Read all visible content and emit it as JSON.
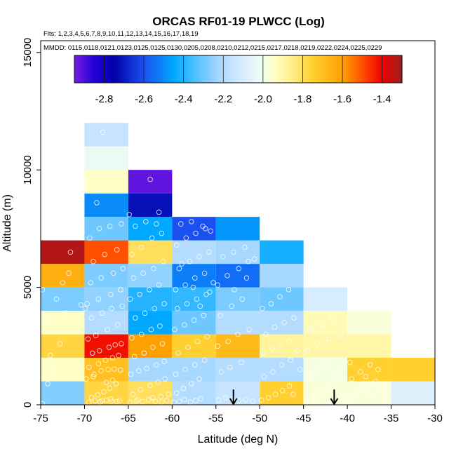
{
  "chart_data": {
    "type": "heatmap",
    "title": "ORCAS RF01-19 PLWCC (Log)",
    "flights_label": "Flts: 1,2,3,4,5,6,7,8,9,10,11,12,13,14,15,16,17,18,19",
    "dates_label": "MMDD: 0115,0118,0121,0123,0125,0125,0130,0205,0208,0210,0212,0215,0217,0218,0219,0222,0224,0225,0229",
    "xlabel": "Latitude (deg N)",
    "ylabel": "Altitude (m)",
    "xlim": [
      -75,
      -30
    ],
    "ylim": [
      0,
      15500
    ],
    "x_ticks": [
      -75,
      -70,
      -65,
      -60,
      -55,
      -50,
      -45,
      -40,
      -35,
      -30
    ],
    "x_tick_labels": [
      "-75",
      "-70",
      "-65",
      "-60",
      "-55",
      "-50",
      "-45",
      "-40",
      "-35",
      "-30"
    ],
    "y_ticks": [
      0,
      5000,
      10000,
      15000
    ],
    "y_tick_labels": [
      "0",
      "5000",
      "10000",
      "15000"
    ],
    "bin_width_deg": 5,
    "bin_height_m": 1000,
    "colorbar": {
      "vmin": -2.95,
      "vmax": -1.3,
      "ticks": [
        -2.8,
        -2.6,
        -2.4,
        -2.2,
        -2.0,
        -1.8,
        -1.6,
        -1.4
      ],
      "tick_labels": [
        "-2.8",
        "-2.6",
        "-2.4",
        "-2.2",
        "-2.0",
        "-1.8",
        "-1.6",
        "-1.4"
      ],
      "stops": [
        {
          "v": -2.95,
          "color": "#7a1ee0"
        },
        {
          "v": -2.85,
          "color": "#2400d8"
        },
        {
          "v": -2.75,
          "color": "#0000a8"
        },
        {
          "v": -2.6,
          "color": "#1a50f0"
        },
        {
          "v": -2.45,
          "color": "#00a8ff"
        },
        {
          "v": -2.3,
          "color": "#6ec8ff"
        },
        {
          "v": -2.2,
          "color": "#b4dcff"
        },
        {
          "v": -2.1,
          "color": "#d8ecff"
        },
        {
          "v": -2.0,
          "color": "#f0fff0"
        },
        {
          "v": -1.95,
          "color": "#ffffc8"
        },
        {
          "v": -1.85,
          "color": "#ffee88"
        },
        {
          "v": -1.75,
          "color": "#ffd030"
        },
        {
          "v": -1.6,
          "color": "#ffa000"
        },
        {
          "v": -1.5,
          "color": "#ff5000"
        },
        {
          "v": -1.4,
          "color": "#ee0000"
        },
        {
          "v": -1.3,
          "color": "#9a2020"
        }
      ]
    },
    "cells": [
      {
        "lat": -75,
        "alt": 0,
        "value": -2.27
      },
      {
        "lat": -75,
        "alt": 1000,
        "value": -1.95
      },
      {
        "lat": -75,
        "alt": 2000,
        "value": -1.77
      },
      {
        "lat": -75,
        "alt": 3000,
        "value": -1.95
      },
      {
        "lat": -75,
        "alt": 4000,
        "value": -2.28
      },
      {
        "lat": -75,
        "alt": 5000,
        "value": -1.65
      },
      {
        "lat": -75,
        "alt": 6000,
        "value": -1.33
      },
      {
        "lat": -70,
        "alt": 0,
        "value": -1.77
      },
      {
        "lat": -70,
        "alt": 1000,
        "value": -1.7
      },
      {
        "lat": -70,
        "alt": 2000,
        "value": -1.42
      },
      {
        "lat": -70,
        "alt": 3000,
        "value": -2.2
      },
      {
        "lat": -70,
        "alt": 4000,
        "value": -2.25
      },
      {
        "lat": -70,
        "alt": 5000,
        "value": -2.28
      },
      {
        "lat": -70,
        "alt": 6000,
        "value": -1.5
      },
      {
        "lat": -70,
        "alt": 7000,
        "value": -2.3
      },
      {
        "lat": -70,
        "alt": 8000,
        "value": -2.5
      },
      {
        "lat": -70,
        "alt": 9000,
        "value": -1.95
      },
      {
        "lat": -70,
        "alt": 10000,
        "value": -2.02
      },
      {
        "lat": -70,
        "alt": 11000,
        "value": -2.15
      },
      {
        "lat": -65,
        "alt": 0,
        "value": -1.8
      },
      {
        "lat": -65,
        "alt": 1000,
        "value": -2.22
      },
      {
        "lat": -65,
        "alt": 2000,
        "value": -1.6
      },
      {
        "lat": -65,
        "alt": 3000,
        "value": -2.45
      },
      {
        "lat": -65,
        "alt": 4000,
        "value": -2.4
      },
      {
        "lat": -65,
        "alt": 5000,
        "value": -2.25
      },
      {
        "lat": -65,
        "alt": 6000,
        "value": -1.8
      },
      {
        "lat": -65,
        "alt": 7000,
        "value": -2.45
      },
      {
        "lat": -65,
        "alt": 8000,
        "value": -2.72
      },
      {
        "lat": -65,
        "alt": 9000,
        "value": -2.92
      },
      {
        "lat": -60,
        "alt": 0,
        "value": -2.2
      },
      {
        "lat": -60,
        "alt": 1000,
        "value": -2.22
      },
      {
        "lat": -60,
        "alt": 2000,
        "value": -1.75
      },
      {
        "lat": -60,
        "alt": 3000,
        "value": -2.3
      },
      {
        "lat": -60,
        "alt": 4000,
        "value": -2.38
      },
      {
        "lat": -60,
        "alt": 5000,
        "value": -2.52
      },
      {
        "lat": -60,
        "alt": 6000,
        "value": -2.2
      },
      {
        "lat": -60,
        "alt": 7000,
        "value": -2.6
      },
      {
        "lat": -55,
        "alt": 0,
        "value": -2.15
      },
      {
        "lat": -55,
        "alt": 1000,
        "value": -2.2
      },
      {
        "lat": -55,
        "alt": 2000,
        "value": -1.68
      },
      {
        "lat": -55,
        "alt": 3000,
        "value": -2.2
      },
      {
        "lat": -55,
        "alt": 4000,
        "value": -2.28
      },
      {
        "lat": -55,
        "alt": 5000,
        "value": -2.55
      },
      {
        "lat": -55,
        "alt": 6000,
        "value": -2.22
      },
      {
        "lat": -55,
        "alt": 7000,
        "value": -2.48
      },
      {
        "lat": -50,
        "alt": 0,
        "value": -1.75
      },
      {
        "lat": -50,
        "alt": 1000,
        "value": -2.2
      },
      {
        "lat": -50,
        "alt": 2000,
        "value": -1.88
      },
      {
        "lat": -50,
        "alt": 3000,
        "value": -2.2
      },
      {
        "lat": -50,
        "alt": 4000,
        "value": -2.3
      },
      {
        "lat": -50,
        "alt": 5000,
        "value": -2.22
      },
      {
        "lat": -50,
        "alt": 6000,
        "value": -2.42
      },
      {
        "lat": -45,
        "alt": 0,
        "value": -1.97
      },
      {
        "lat": -45,
        "alt": 1000,
        "value": -1.98
      },
      {
        "lat": -45,
        "alt": 2000,
        "value": -1.9
      },
      {
        "lat": -45,
        "alt": 3000,
        "value": -1.92
      },
      {
        "lat": -45,
        "alt": 4000,
        "value": -2.1
      },
      {
        "lat": -40,
        "alt": 0,
        "value": -1.97
      },
      {
        "lat": -40,
        "alt": 1000,
        "value": -1.75
      },
      {
        "lat": -40,
        "alt": 2000,
        "value": -1.9
      },
      {
        "lat": -40,
        "alt": 3000,
        "value": -1.97
      },
      {
        "lat": -35,
        "alt": 0,
        "value": -2.08
      },
      {
        "lat": -35,
        "alt": 1000,
        "value": -1.75
      }
    ],
    "arrows": [
      {
        "lat": -53,
        "alt": 650
      },
      {
        "lat": -41.5,
        "alt": 650
      }
    ],
    "points": [
      [
        -74.8,
        50
      ],
      [
        -74.2,
        900
      ],
      [
        -73.5,
        1500
      ],
      [
        -72.8,
        2600
      ],
      [
        -74.5,
        3600
      ],
      [
        -73.2,
        4500
      ],
      [
        -74.8,
        4900
      ],
      [
        -72.5,
        5200
      ],
      [
        -71.8,
        5600
      ],
      [
        -71.6,
        6500
      ],
      [
        -73.9,
        2100
      ],
      [
        -72.1,
        3900
      ],
      [
        -69.5,
        100
      ],
      [
        -68.8,
        160
      ],
      [
        -68.2,
        120
      ],
      [
        -67.5,
        200
      ],
      [
        -66.9,
        150
      ],
      [
        -66.3,
        140
      ],
      [
        -69.2,
        300
      ],
      [
        -68.5,
        420
      ],
      [
        -67.8,
        550
      ],
      [
        -67.1,
        700
      ],
      [
        -66.4,
        900
      ],
      [
        -69.8,
        1100
      ],
      [
        -68.9,
        1300
      ],
      [
        -68.1,
        1450
      ],
      [
        -67.3,
        1500
      ],
      [
        -66.6,
        1520
      ],
      [
        -65.9,
        1480
      ],
      [
        -69.5,
        1600
      ],
      [
        -68.4,
        1750
      ],
      [
        -67.6,
        1900
      ],
      [
        -66.8,
        2000
      ],
      [
        -66.1,
        2100
      ],
      [
        -69.1,
        2200
      ],
      [
        -68.3,
        2300
      ],
      [
        -67.2,
        2450
      ],
      [
        -66.5,
        2550
      ],
      [
        -65.8,
        2600
      ],
      [
        -69.6,
        2800
      ],
      [
        -68.7,
        2950
      ],
      [
        -67.4,
        3200
      ],
      [
        -66.2,
        3400
      ],
      [
        -69.2,
        3700
      ],
      [
        -68.0,
        3900
      ],
      [
        -66.9,
        4100
      ],
      [
        -65.7,
        4200
      ],
      [
        -69.7,
        4300
      ],
      [
        -68.4,
        4500
      ],
      [
        -67.0,
        4700
      ],
      [
        -65.9,
        4900
      ],
      [
        -69.3,
        5200
      ],
      [
        -68.1,
        5400
      ],
      [
        -66.7,
        5600
      ],
      [
        -65.6,
        5800
      ],
      [
        -69.0,
        6100
      ],
      [
        -67.7,
        6400
      ],
      [
        -66.3,
        6600
      ],
      [
        -69.4,
        7100
      ],
      [
        -68.3,
        7500
      ],
      [
        -67.1,
        7600
      ],
      [
        -65.8,
        7700
      ],
      [
        -68.6,
        8600
      ],
      [
        -67.9,
        11600
      ],
      [
        -69.9,
        4100
      ],
      [
        -70.4,
        4250
      ],
      [
        -67.5,
        950
      ],
      [
        -66.8,
        1050
      ],
      [
        -69.0,
        1200
      ],
      [
        -68.0,
        180
      ],
      [
        -67.0,
        250
      ],
      [
        -66.0,
        170
      ],
      [
        -64.8,
        100
      ],
      [
        -64.1,
        160
      ],
      [
        -63.4,
        130
      ],
      [
        -62.7,
        210
      ],
      [
        -61.9,
        140
      ],
      [
        -61.2,
        120
      ],
      [
        -60.6,
        180
      ],
      [
        -64.5,
        450
      ],
      [
        -63.6,
        640
      ],
      [
        -62.5,
        820
      ],
      [
        -61.6,
        960
      ],
      [
        -60.8,
        1100
      ],
      [
        -64.7,
        1300
      ],
      [
        -63.8,
        1450
      ],
      [
        -62.9,
        1550
      ],
      [
        -61.8,
        1700
      ],
      [
        -60.9,
        1850
      ],
      [
        -64.3,
        2050
      ],
      [
        -63.2,
        2200
      ],
      [
        -62.2,
        2450
      ],
      [
        -61.1,
        2600
      ],
      [
        -64.6,
        2850
      ],
      [
        -63.5,
        3000
      ],
      [
        -62.4,
        3200
      ],
      [
        -61.4,
        3350
      ],
      [
        -64.2,
        3700
      ],
      [
        -63.1,
        3900
      ],
      [
        -62.0,
        4100
      ],
      [
        -60.9,
        4300
      ],
      [
        -64.8,
        4500
      ],
      [
        -63.7,
        4700
      ],
      [
        -62.6,
        4900
      ],
      [
        -61.5,
        5100
      ],
      [
        -64.4,
        5400
      ],
      [
        -63.3,
        5600
      ],
      [
        -62.1,
        5800
      ],
      [
        -61.0,
        6100
      ],
      [
        -64.6,
        6400
      ],
      [
        -63.5,
        6700
      ],
      [
        -62.3,
        7100
      ],
      [
        -61.2,
        7300
      ],
      [
        -64.2,
        7600
      ],
      [
        -63.0,
        7800
      ],
      [
        -61.8,
        7700
      ],
      [
        -64.9,
        8100
      ],
      [
        -61.5,
        8200
      ],
      [
        -62.5,
        9600
      ],
      [
        -60.4,
        450
      ],
      [
        -61.3,
        350
      ],
      [
        -63.9,
        220
      ],
      [
        -62.2,
        300
      ],
      [
        -59.8,
        100
      ],
      [
        -59.2,
        150
      ],
      [
        -58.6,
        220
      ],
      [
        -57.9,
        120
      ],
      [
        -57.3,
        180
      ],
      [
        -56.7,
        260
      ],
      [
        -59.5,
        500
      ],
      [
        -58.7,
        700
      ],
      [
        -57.8,
        900
      ],
      [
        -56.9,
        1100
      ],
      [
        -59.6,
        1300
      ],
      [
        -58.5,
        1500
      ],
      [
        -57.4,
        1700
      ],
      [
        -56.3,
        1900
      ],
      [
        -59.3,
        2200
      ],
      [
        -58.2,
        2450
      ],
      [
        -57.1,
        2700
      ],
      [
        -56.0,
        2900
      ],
      [
        -59.7,
        3200
      ],
      [
        -58.6,
        3400
      ],
      [
        -57.5,
        3600
      ],
      [
        -56.4,
        3800
      ],
      [
        -59.4,
        4100
      ],
      [
        -58.3,
        4300
      ],
      [
        -57.2,
        4500
      ],
      [
        -56.1,
        4700
      ],
      [
        -59.6,
        4900
      ],
      [
        -58.5,
        5100
      ],
      [
        -57.4,
        5400
      ],
      [
        -56.3,
        5600
      ],
      [
        -59.2,
        5800
      ],
      [
        -58.0,
        6100
      ],
      [
        -56.9,
        6300
      ],
      [
        -55.8,
        6500
      ],
      [
        -59.5,
        6800
      ],
      [
        -58.4,
        7100
      ],
      [
        -57.3,
        7300
      ],
      [
        -56.2,
        7500
      ],
      [
        -59.0,
        7700
      ],
      [
        -57.8,
        7800
      ],
      [
        -56.5,
        7600
      ],
      [
        -55.6,
        7400
      ],
      [
        -55.3,
        5200
      ],
      [
        -55.7,
        4800
      ],
      [
        -58.9,
        6000
      ],
      [
        -57.6,
        5000
      ],
      [
        -56.8,
        4200
      ],
      [
        -54.7,
        200
      ],
      [
        -53.9,
        300
      ],
      [
        -53.1,
        250
      ],
      [
        -52.4,
        180
      ],
      [
        -51.6,
        220
      ],
      [
        -50.8,
        150
      ],
      [
        -54.4,
        1400
      ],
      [
        -53.4,
        1600
      ],
      [
        -52.1,
        1800
      ],
      [
        -54.8,
        2500
      ],
      [
        -53.6,
        2700
      ],
      [
        -52.5,
        3000
      ],
      [
        -51.2,
        3200
      ],
      [
        -54.5,
        3800
      ],
      [
        -53.2,
        4200
      ],
      [
        -52.0,
        4500
      ],
      [
        -54.8,
        5100
      ],
      [
        -53.7,
        5500
      ],
      [
        -52.4,
        5800
      ],
      [
        -51.3,
        6100
      ],
      [
        -54.2,
        6300
      ],
      [
        -53.0,
        6500
      ],
      [
        -51.7,
        6700
      ],
      [
        -50.6,
        6200
      ],
      [
        -51.5,
        5400
      ],
      [
        -52.9,
        4900
      ],
      [
        -49.8,
        200
      ],
      [
        -49.0,
        300
      ],
      [
        -48.2,
        450
      ],
      [
        -47.4,
        600
      ],
      [
        -46.6,
        800
      ],
      [
        -49.5,
        1200
      ],
      [
        -48.5,
        1400
      ],
      [
        -47.5,
        1700
      ],
      [
        -46.5,
        1900
      ],
      [
        -49.6,
        2200
      ],
      [
        -48.6,
        2400
      ],
      [
        -47.6,
        2500
      ],
      [
        -46.6,
        2700
      ],
      [
        -49.3,
        3000
      ],
      [
        -48.3,
        3300
      ],
      [
        -47.2,
        3500
      ],
      [
        -46.1,
        3700
      ],
      [
        -49.7,
        4100
      ],
      [
        -48.7,
        4300
      ],
      [
        -47.7,
        4600
      ],
      [
        -46.7,
        4900
      ],
      [
        -45.7,
        2300
      ],
      [
        -45.4,
        1500
      ],
      [
        -46.2,
        450
      ],
      [
        -44.7,
        150
      ],
      [
        -43.9,
        300
      ],
      [
        -43.1,
        500
      ],
      [
        -42.3,
        700
      ],
      [
        -44.4,
        1200
      ],
      [
        -43.4,
        1500
      ],
      [
        -42.4,
        1700
      ],
      [
        -44.6,
        2300
      ],
      [
        -43.4,
        2600
      ],
      [
        -42.1,
        2800
      ],
      [
        -44.3,
        3200
      ],
      [
        -42.9,
        3400
      ],
      [
        -41.8,
        3700
      ],
      [
        -41.2,
        1300
      ],
      [
        -40.5,
        1600
      ],
      [
        -40.8,
        2900
      ],
      [
        -39.8,
        300
      ],
      [
        -38.9,
        500
      ],
      [
        -38.0,
        700
      ],
      [
        -37.2,
        400
      ],
      [
        -39.5,
        1100
      ],
      [
        -38.5,
        1400
      ],
      [
        -37.4,
        1700
      ],
      [
        -36.5,
        1500
      ],
      [
        -36.1,
        800
      ],
      [
        -35.6,
        300
      ],
      [
        -35.3,
        600
      ],
      [
        -39.7,
        1800
      ],
      [
        -37.9,
        1200
      ],
      [
        -36.8,
        1000
      ]
    ]
  }
}
